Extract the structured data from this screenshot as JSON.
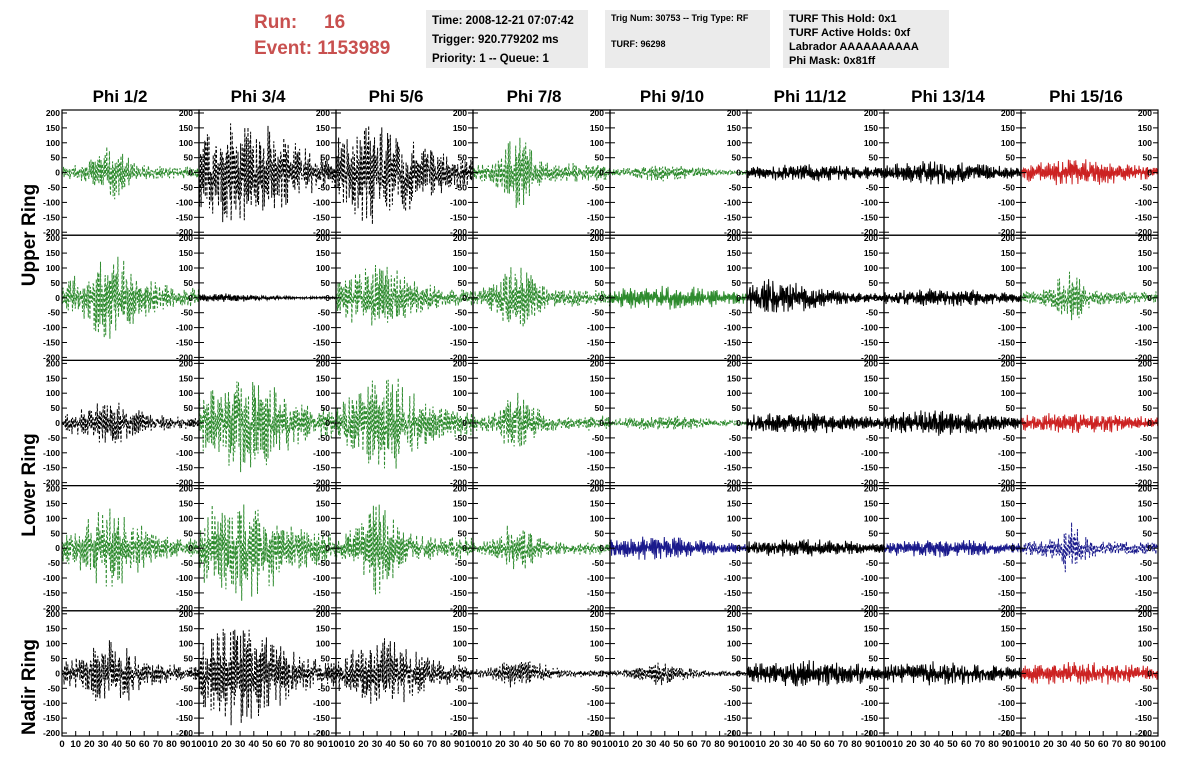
{
  "header": {
    "run_label": "Run:",
    "run_value": "16",
    "event_label": "Event:",
    "event_value": "1153989",
    "colors": {
      "header_text": "#c8504f",
      "box_bg": "#ebebeb"
    }
  },
  "info_boxes": {
    "time": "Time: 2008-12-21 07:07:42",
    "trigger": "Trigger: 920.779202 ms",
    "priority": "Priority: 1 -- Queue: 1",
    "trig_num": "Trig Num: 30753 -- Trig Type: RF",
    "turf": "TURF: 96298",
    "turf_hold": "TURF This Hold: 0x1",
    "turf_active": "TURF Active Holds: 0xf",
    "labrador": "Labrador AAAAAAAAAA",
    "phi_mask": "Phi Mask: 0x81ff"
  },
  "phi_labels": [
    "Phi 1/2",
    "Phi 3/4",
    "Phi 5/6",
    "Phi 7/8",
    "Phi 9/10",
    "Phi 11/12",
    "Phi 13/14",
    "Phi 15/16"
  ],
  "ring_labels": [
    "Upper Ring",
    "Lower Ring",
    "Nadir Ring"
  ],
  "chart_data": {
    "type": "line",
    "xlim": [
      0,
      100
    ],
    "ylim": [
      -210,
      210
    ],
    "x_ticks": [
      0,
      10,
      20,
      30,
      40,
      50,
      60,
      70,
      80,
      90,
      100
    ],
    "y_ticks": [
      -200,
      -150,
      -100,
      -50,
      0,
      50,
      100,
      150,
      200
    ],
    "colors": {
      "green": "#2e8b2e",
      "black": "#000000",
      "red": "#cc2222",
      "blue": "#1a1a8c"
    },
    "panels": [
      [
        {
          "color": "green",
          "dashed": true,
          "amp": 90,
          "center": 35,
          "width": 14,
          "seed": 1
        },
        {
          "color": "black",
          "dashed": true,
          "amp": 190,
          "center": 30,
          "width": 40,
          "seed": 2
        },
        {
          "color": "black",
          "dashed": true,
          "amp": 170,
          "center": 30,
          "width": 40,
          "seed": 3
        },
        {
          "color": "green",
          "dashed": true,
          "amp": 130,
          "center": 32,
          "width": 12,
          "seed": 4
        },
        {
          "color": "green",
          "dashed": true,
          "amp": 30,
          "center": 40,
          "width": 30,
          "seed": 5
        },
        {
          "color": "black",
          "dashed": false,
          "amp": 30,
          "center": 50,
          "width": 60,
          "seed": 6
        },
        {
          "color": "black",
          "dashed": false,
          "amp": 40,
          "center": 40,
          "width": 50,
          "seed": 7
        },
        {
          "color": "red",
          "dashed": false,
          "amp": 45,
          "center": 40,
          "width": 50,
          "seed": 8
        }
      ],
      [
        {
          "color": "green",
          "dashed": true,
          "amp": 140,
          "center": 35,
          "width": 25,
          "seed": 9
        },
        {
          "color": "black",
          "dashed": false,
          "amp": 15,
          "center": 20,
          "width": 30,
          "seed": 10
        },
        {
          "color": "green",
          "dashed": true,
          "amp": 110,
          "center": 30,
          "width": 30,
          "seed": 11
        },
        {
          "color": "green",
          "dashed": true,
          "amp": 120,
          "center": 32,
          "width": 14,
          "seed": 12
        },
        {
          "color": "green",
          "dashed": false,
          "amp": 40,
          "center": 40,
          "width": 60,
          "seed": 13
        },
        {
          "color": "black",
          "dashed": false,
          "amp": 60,
          "center": 15,
          "width": 40,
          "seed": 14
        },
        {
          "color": "black",
          "dashed": false,
          "amp": 30,
          "center": 40,
          "width": 60,
          "seed": 15
        },
        {
          "color": "green",
          "dashed": true,
          "amp": 90,
          "center": 35,
          "width": 12,
          "seed": 16
        }
      ],
      [
        {
          "color": "black",
          "dashed": true,
          "amp": 70,
          "center": 35,
          "width": 30,
          "seed": 17
        },
        {
          "color": "green",
          "dashed": true,
          "amp": 170,
          "center": 30,
          "width": 35,
          "seed": 18
        },
        {
          "color": "green",
          "dashed": true,
          "amp": 160,
          "center": 35,
          "width": 30,
          "seed": 19
        },
        {
          "color": "green",
          "dashed": true,
          "amp": 100,
          "center": 32,
          "width": 14,
          "seed": 20
        },
        {
          "color": "green",
          "dashed": true,
          "amp": 25,
          "center": 40,
          "width": 40,
          "seed": 21
        },
        {
          "color": "black",
          "dashed": false,
          "amp": 35,
          "center": 40,
          "width": 60,
          "seed": 22
        },
        {
          "color": "black",
          "dashed": false,
          "amp": 45,
          "center": 40,
          "width": 50,
          "seed": 23
        },
        {
          "color": "red",
          "dashed": false,
          "amp": 35,
          "center": 40,
          "width": 60,
          "seed": 24
        }
      ],
      [
        {
          "color": "green",
          "dashed": true,
          "amp": 130,
          "center": 35,
          "width": 25,
          "seed": 25
        },
        {
          "color": "green",
          "dashed": true,
          "amp": 180,
          "center": 30,
          "width": 35,
          "seed": 26
        },
        {
          "color": "green",
          "dashed": true,
          "amp": 170,
          "center": 30,
          "width": 14,
          "seed": 27
        },
        {
          "color": "green",
          "dashed": true,
          "amp": 90,
          "center": 32,
          "width": 14,
          "seed": 28
        },
        {
          "color": "blue",
          "dashed": false,
          "amp": 40,
          "center": 30,
          "width": 50,
          "seed": 29
        },
        {
          "color": "black",
          "dashed": false,
          "amp": 30,
          "center": 40,
          "width": 60,
          "seed": 30
        },
        {
          "color": "blue",
          "dashed": false,
          "amp": 30,
          "center": 40,
          "width": 60,
          "seed": 31
        },
        {
          "color": "blue",
          "dashed": true,
          "amp": 90,
          "center": 35,
          "width": 12,
          "seed": 32
        }
      ],
      [
        {
          "color": "black",
          "dashed": true,
          "amp": 110,
          "center": 35,
          "width": 25,
          "seed": 33
        },
        {
          "color": "black",
          "dashed": true,
          "amp": 170,
          "center": 30,
          "width": 35,
          "seed": 34
        },
        {
          "color": "black",
          "dashed": true,
          "amp": 120,
          "center": 35,
          "width": 30,
          "seed": 35
        },
        {
          "color": "black",
          "dashed": true,
          "amp": 50,
          "center": 35,
          "width": 20,
          "seed": 36
        },
        {
          "color": "black",
          "dashed": true,
          "amp": 40,
          "center": 40,
          "width": 20,
          "seed": 37
        },
        {
          "color": "black",
          "dashed": false,
          "amp": 45,
          "center": 45,
          "width": 60,
          "seed": 38
        },
        {
          "color": "black",
          "dashed": false,
          "amp": 40,
          "center": 40,
          "width": 60,
          "seed": 39
        },
        {
          "color": "red",
          "dashed": false,
          "amp": 40,
          "center": 40,
          "width": 60,
          "seed": 40
        }
      ]
    ]
  }
}
